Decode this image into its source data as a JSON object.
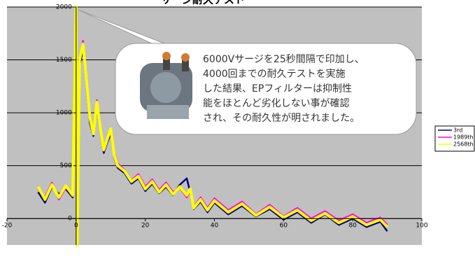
{
  "chart_data": {
    "type": "line",
    "title": "サージ耐久テスト",
    "x": [
      -11,
      -9,
      -7,
      -5,
      -3,
      -1,
      0,
      0.3,
      1,
      2,
      3,
      4,
      5,
      6,
      7,
      8,
      9,
      10,
      11,
      12,
      14,
      16,
      18,
      20,
      22,
      24,
      26,
      28,
      30,
      32,
      33,
      34,
      36,
      38,
      40,
      44,
      48,
      52,
      56,
      60,
      64,
      68,
      72,
      76,
      80,
      84,
      88,
      90
    ],
    "series": [
      {
        "name": "3rd",
        "color": "#000080",
        "values": [
          250,
          150,
          300,
          230,
          280,
          200,
          1950,
          -200,
          1450,
          1600,
          1250,
          900,
          780,
          1050,
          820,
          620,
          720,
          800,
          580,
          480,
          430,
          330,
          380,
          260,
          330,
          240,
          300,
          220,
          320,
          380,
          250,
          90,
          160,
          60,
          150,
          40,
          120,
          20,
          90,
          -10,
          60,
          -40,
          40,
          -60,
          0,
          -80,
          -30,
          -120
        ]
      },
      {
        "name": "1989th",
        "color": "#ff00ff",
        "values": [
          280,
          200,
          340,
          180,
          290,
          240,
          1980,
          -220,
          1480,
          1680,
          1280,
          930,
          820,
          1120,
          860,
          640,
          760,
          840,
          620,
          520,
          460,
          360,
          420,
          300,
          370,
          270,
          340,
          250,
          290,
          200,
          260,
          110,
          200,
          100,
          190,
          80,
          160,
          40,
          130,
          20,
          100,
          0,
          70,
          -20,
          40,
          -40,
          10,
          -60
        ]
      },
      {
        "name": "2568th",
        "color": "#ffff00",
        "values": [
          300,
          180,
          320,
          200,
          310,
          220,
          2000,
          -250,
          1500,
          1650,
          1300,
          950,
          800,
          1100,
          850,
          650,
          750,
          850,
          600,
          500,
          450,
          350,
          400,
          280,
          350,
          250,
          320,
          230,
          300,
          220,
          280,
          100,
          180,
          80,
          170,
          60,
          140,
          30,
          110,
          10,
          80,
          -20,
          50,
          -40,
          20,
          -60,
          -10,
          -80
        ]
      }
    ],
    "xlim": [
      -20,
      100
    ],
    "xticks": [
      -20,
      0,
      20,
      40,
      60,
      80,
      100
    ],
    "ylim": [
      -250,
      2000
    ],
    "yticks": [
      0,
      500,
      1000,
      1500,
      2000
    ],
    "grid": true,
    "legend": "right",
    "annotations": [
      "6000Vサージを25秒間隔で印加し、",
      "4000回までの耐久テストを実施",
      "した結果、EPフィルターは抑制性",
      "能をほとんど劣化しない事が確認",
      "され、その耐久性が明されました。"
    ]
  }
}
